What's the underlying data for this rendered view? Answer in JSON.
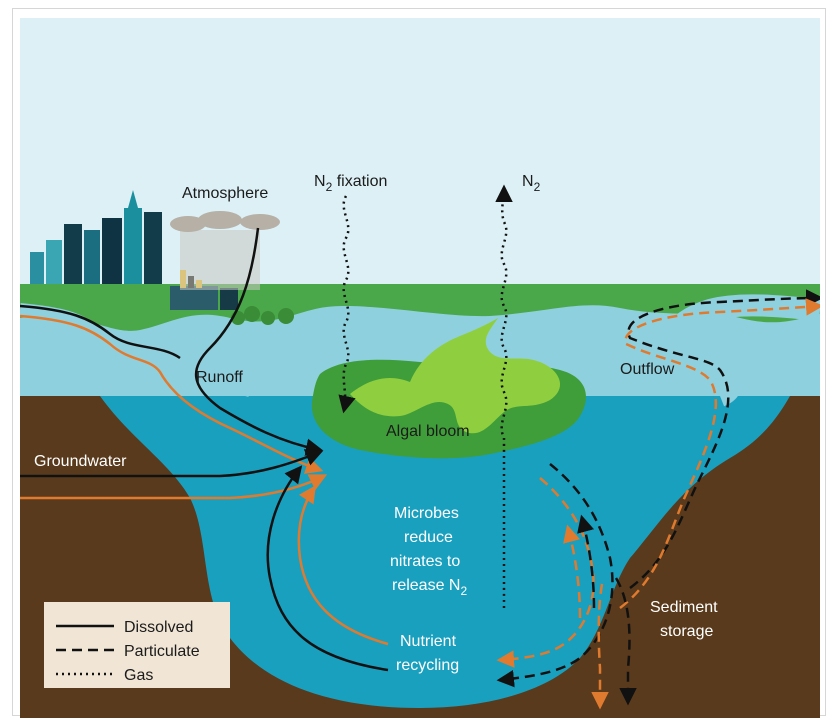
{
  "labels": {
    "atmosphere": "Atmosphere",
    "n2_fixation": "N",
    "n2_fixation_sub": "2",
    "n2_fixation_rest": " fixation",
    "n2_release": "N",
    "n2_release_sub": "2",
    "runoff": "Runoff",
    "outflow": "Outflow",
    "algal_bloom": "Algal bloom",
    "groundwater": "Groundwater",
    "microbes_line1": "Microbes",
    "microbes_line2": "reduce",
    "microbes_line3": "nitrates to",
    "microbes_line4": "release N",
    "microbes_sub": "2",
    "nutrient_line1": "Nutrient",
    "nutrient_line2": "recycling",
    "sediment_line1": "Sediment",
    "sediment_line2": "storage"
  },
  "legend": {
    "dissolved": "Dissolved",
    "particulate": "Particulate",
    "gas": "Gas"
  },
  "colors": {
    "sky": "#dcf0f6",
    "land_green": "#4aa84a",
    "soil": "#5a3a1c",
    "water_surface": "#8fd0de",
    "water_deep": "#1aa0bf",
    "bloom_dark": "#3f9e3a",
    "bloom_light": "#8fcf3f",
    "flow_black": "#111111",
    "flow_orange": "#e07a2e",
    "legend_bg": "#f1e6d6"
  }
}
